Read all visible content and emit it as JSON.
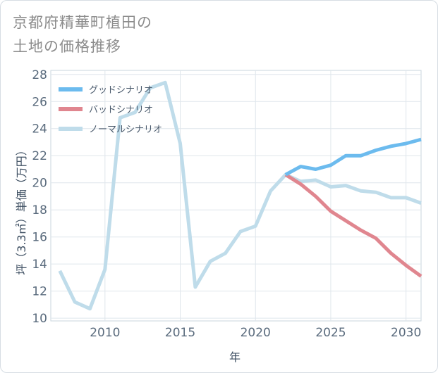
{
  "title": {
    "line1": "京都府精華町植田の",
    "line2": "土地の価格推移"
  },
  "chart_data": {
    "type": "line",
    "xlabel": "年",
    "ylabel": "坪（3.3㎡）単価（万円）",
    "xlim": [
      2006.4,
      2031
    ],
    "ylim": [
      9.8,
      28.3
    ],
    "x_ticks": [
      2010,
      2015,
      2020,
      2025,
      2030
    ],
    "y_ticks": [
      10,
      12,
      14,
      16,
      18,
      20,
      22,
      24,
      26,
      28
    ],
    "grid": true,
    "legend_position": "top-left",
    "series": [
      {
        "name": "グッドシナリオ",
        "color": "#6cbbee",
        "x": [
          2022,
          2023,
          2024,
          2025,
          2026,
          2027,
          2028,
          2029,
          2030,
          2031
        ],
        "y": [
          20.6,
          21.2,
          21.0,
          21.3,
          22.0,
          22.0,
          22.4,
          22.7,
          22.9,
          23.2
        ]
      },
      {
        "name": "バッドシナリオ",
        "color": "#e0868f",
        "x": [
          2022,
          2023,
          2024,
          2025,
          2026,
          2027,
          2028,
          2029,
          2030,
          2031
        ],
        "y": [
          20.6,
          19.9,
          19.0,
          17.9,
          17.2,
          16.5,
          15.9,
          14.8,
          13.9,
          13.1
        ]
      },
      {
        "name": "ノーマルシナリオ",
        "color": "#bfdcea",
        "x": [
          2007,
          2008,
          2009,
          2010,
          2011,
          2012,
          2013,
          2014,
          2015,
          2016,
          2017,
          2018,
          2019,
          2020,
          2021,
          2022,
          2023,
          2024,
          2025,
          2026,
          2027,
          2028,
          2029,
          2030,
          2031
        ],
        "y": [
          13.5,
          11.2,
          10.7,
          13.6,
          24.8,
          25.2,
          27.0,
          27.4,
          22.9,
          12.3,
          14.2,
          14.8,
          16.4,
          16.8,
          19.4,
          20.6,
          20.1,
          20.2,
          19.7,
          19.8,
          19.4,
          19.3,
          18.9,
          18.9,
          18.5
        ]
      }
    ]
  }
}
